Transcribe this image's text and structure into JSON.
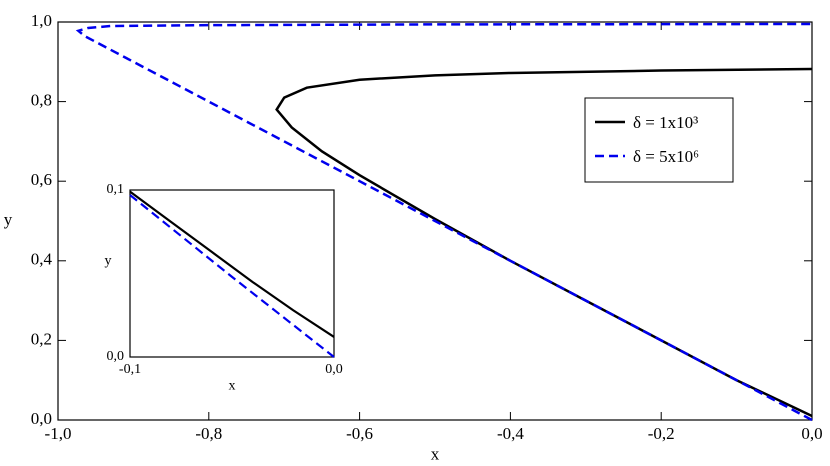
{
  "chart_data": [
    {
      "type": "line",
      "xlabel": "x",
      "ylabel": "y",
      "xlim": [
        -1.0,
        0.0
      ],
      "ylim": [
        0.0,
        1.0
      ],
      "xticks": [
        {
          "value": -1.0,
          "label": "-1,0"
        },
        {
          "value": -0.8,
          "label": "-0,8"
        },
        {
          "value": -0.6,
          "label": "-0,6"
        },
        {
          "value": -0.4,
          "label": "-0,4"
        },
        {
          "value": -0.2,
          "label": "-0,2"
        },
        {
          "value": 0.0,
          "label": "0,0"
        }
      ],
      "yticks": [
        {
          "value": 0.0,
          "label": "0,0"
        },
        {
          "value": 0.2,
          "label": "0,2"
        },
        {
          "value": 0.4,
          "label": "0,4"
        },
        {
          "value": 0.6,
          "label": "0,6"
        },
        {
          "value": 0.8,
          "label": "0,8"
        },
        {
          "value": 1.0,
          "label": "1,0"
        }
      ],
      "legend": "upper right",
      "series": [
        {
          "name": "δ = 1x10³",
          "color": "#000000",
          "dash": false,
          "x": [
            0,
            -0.1,
            -0.2,
            -0.3,
            -0.4,
            -0.5,
            -0.6,
            -0.65,
            -0.69,
            -0.71,
            -0.7,
            -0.67,
            -0.6,
            -0.5,
            -0.4,
            -0.2,
            0
          ],
          "values": [
            0.01,
            0.1,
            0.2,
            0.3,
            0.4,
            0.505,
            0.615,
            0.675,
            0.735,
            0.78,
            0.81,
            0.835,
            0.855,
            0.866,
            0.872,
            0.878,
            0.882
          ]
        },
        {
          "name": "δ = 5x10⁶",
          "color": "#0000ee",
          "dash": true,
          "x": [
            0,
            -0.2,
            -0.4,
            -0.6,
            -0.8,
            -0.965,
            -0.973,
            -0.96,
            -0.93,
            -0.8,
            -0.5,
            0
          ],
          "values": [
            0,
            0.2,
            0.4,
            0.6,
            0.8,
            0.965,
            0.978,
            0.985,
            0.99,
            0.992,
            0.994,
            0.995
          ]
        }
      ]
    },
    {
      "type": "line",
      "xlabel": "x",
      "ylabel": "y",
      "xlim": [
        -0.1,
        0.0
      ],
      "ylim": [
        0.0,
        0.1
      ],
      "xticks": [
        {
          "value": -0.1,
          "label": "-0,1"
        },
        {
          "value": 0.0,
          "label": "0,0"
        }
      ],
      "yticks": [
        {
          "value": 0.0,
          "label": "0,0"
        },
        {
          "value": 0.1,
          "label": "0,1"
        }
      ],
      "series": [
        {
          "color": "#000000",
          "dash": false,
          "x": [
            -0.1,
            -0.08,
            -0.06,
            -0.04,
            -0.02,
            0
          ],
          "values": [
            0.099,
            0.081,
            0.063,
            0.045,
            0.028,
            0.012
          ]
        },
        {
          "color": "#0000ee",
          "dash": true,
          "x": [
            -0.1,
            -0.05,
            0
          ],
          "values": [
            0.097,
            0.048,
            0
          ]
        }
      ]
    }
  ]
}
